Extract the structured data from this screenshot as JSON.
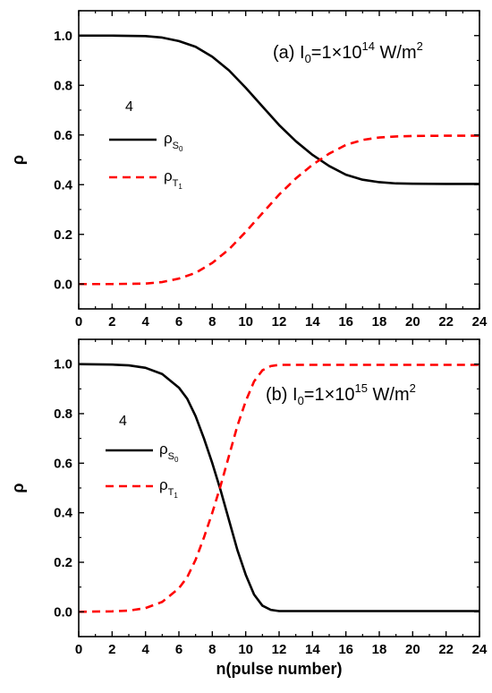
{
  "chart_data": [
    {
      "type": "line",
      "panel": "(a)",
      "annotation": {
        "prefix": "(a) I",
        "sub": "0",
        "mid": "=1×10",
        "exp": "14",
        "unit": " W/m",
        "unit_exp": "2"
      },
      "ylabel": "ρ",
      "xlabel": "",
      "xlim": [
        0,
        24
      ],
      "ylim": [
        -0.1,
        1.1
      ],
      "xticks": [
        "0",
        "2",
        "4",
        "6",
        "8",
        "10",
        "12",
        "14",
        "16",
        "18",
        "20",
        "22",
        "24"
      ],
      "yticks": [
        "0.0",
        "0.2",
        "0.4",
        "0.6",
        "0.8",
        "1.0"
      ],
      "legend": {
        "number": "4",
        "placement": "upper-left"
      },
      "series": [
        {
          "name": "ρS0",
          "base": "ρ",
          "sub": "S",
          "subsub": "0",
          "color": "#000000",
          "dash": "solid",
          "x": [
            0,
            2,
            4,
            5,
            6,
            7,
            8,
            9,
            10,
            11,
            12,
            13,
            14,
            15,
            16,
            17,
            18,
            19,
            20,
            22,
            24
          ],
          "y": [
            1.0,
            1.0,
            0.998,
            0.992,
            0.978,
            0.955,
            0.915,
            0.86,
            0.79,
            0.715,
            0.64,
            0.575,
            0.52,
            0.475,
            0.44,
            0.42,
            0.41,
            0.405,
            0.404,
            0.403,
            0.403
          ]
        },
        {
          "name": "ρT1",
          "base": "ρ",
          "sub": "T",
          "subsub": "1",
          "color": "#ff0000",
          "dash": "dashed",
          "x": [
            0,
            2,
            4,
            5,
            6,
            7,
            8,
            9,
            10,
            11,
            12,
            13,
            14,
            15,
            16,
            17,
            18,
            19,
            20,
            22,
            24
          ],
          "y": [
            0.0,
            0.0,
            0.002,
            0.008,
            0.022,
            0.045,
            0.085,
            0.14,
            0.21,
            0.285,
            0.36,
            0.425,
            0.48,
            0.525,
            0.56,
            0.58,
            0.59,
            0.594,
            0.596,
            0.597,
            0.597
          ]
        }
      ]
    },
    {
      "type": "line",
      "panel": "(b)",
      "annotation": {
        "prefix": "(b) I",
        "sub": "0",
        "mid": "=1×10",
        "exp": "15",
        "unit": " W/m",
        "unit_exp": "2"
      },
      "ylabel": "ρ",
      "xlabel": "n(pulse number)",
      "xlim": [
        0,
        24
      ],
      "ylim": [
        -0.1,
        1.1
      ],
      "xticks": [
        "0",
        "2",
        "4",
        "6",
        "8",
        "10",
        "12",
        "14",
        "16",
        "18",
        "20",
        "22",
        "24"
      ],
      "yticks": [
        "0.0",
        "0.2",
        "0.4",
        "0.6",
        "0.8",
        "1.0"
      ],
      "legend": {
        "number": "4",
        "placement": "upper-left"
      },
      "series": [
        {
          "name": "ρS0",
          "base": "ρ",
          "sub": "S",
          "subsub": "0",
          "color": "#000000",
          "dash": "solid",
          "x": [
            0,
            2,
            3,
            4,
            5,
            6,
            6.5,
            7,
            7.5,
            8,
            8.5,
            9,
            9.5,
            10,
            10.5,
            11,
            11.5,
            12,
            14,
            16,
            18,
            20,
            22,
            24
          ],
          "y": [
            1.0,
            0.998,
            0.995,
            0.985,
            0.96,
            0.905,
            0.86,
            0.79,
            0.7,
            0.6,
            0.49,
            0.37,
            0.25,
            0.15,
            0.07,
            0.025,
            0.008,
            0.003,
            0.003,
            0.003,
            0.003,
            0.003,
            0.003,
            0.003
          ]
        },
        {
          "name": "ρT1",
          "base": "ρ",
          "sub": "T",
          "subsub": "1",
          "color": "#ff0000",
          "dash": "dashed",
          "x": [
            0,
            2,
            3,
            4,
            5,
            6,
            6.5,
            7,
            7.5,
            8,
            8.5,
            9,
            9.5,
            10,
            10.5,
            11,
            11.5,
            12,
            14,
            16,
            18,
            20,
            22,
            24
          ],
          "y": [
            0.0,
            0.002,
            0.005,
            0.015,
            0.04,
            0.095,
            0.14,
            0.21,
            0.3,
            0.4,
            0.51,
            0.63,
            0.75,
            0.85,
            0.93,
            0.975,
            0.992,
            0.997,
            0.997,
            0.997,
            0.997,
            0.997,
            0.997,
            0.997
          ]
        }
      ]
    }
  ]
}
